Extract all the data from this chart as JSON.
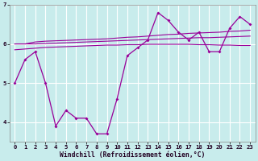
{
  "xlabel": "Windchill (Refroidissement éolien,°C)",
  "background_color": "#c8ecec",
  "grid_color": "#ffffff",
  "line_color": "#990099",
  "x": [
    0,
    1,
    2,
    3,
    4,
    5,
    6,
    7,
    8,
    9,
    10,
    11,
    12,
    13,
    14,
    15,
    16,
    17,
    18,
    19,
    20,
    21,
    22,
    23
  ],
  "line1": [
    5.0,
    5.6,
    5.8,
    5.0,
    3.9,
    4.3,
    4.1,
    4.1,
    3.7,
    3.7,
    4.6,
    5.7,
    5.9,
    6.1,
    6.8,
    6.6,
    6.3,
    6.1,
    6.3,
    5.8,
    5.8,
    6.4,
    6.7,
    6.5
  ],
  "line2": [
    6.0,
    6.0,
    6.05,
    6.07,
    6.08,
    6.09,
    6.1,
    6.11,
    6.12,
    6.13,
    6.15,
    6.17,
    6.18,
    6.2,
    6.22,
    6.24,
    6.25,
    6.27,
    6.28,
    6.29,
    6.3,
    6.32,
    6.33,
    6.35
  ],
  "line3": [
    6.0,
    6.0,
    6.0,
    6.01,
    6.02,
    6.03,
    6.04,
    6.05,
    6.06,
    6.07,
    6.08,
    6.09,
    6.1,
    6.11,
    6.12,
    6.13,
    6.14,
    6.15,
    6.16,
    6.16,
    6.17,
    6.18,
    6.19,
    6.2
  ],
  "line4": [
    5.85,
    5.87,
    5.89,
    5.91,
    5.92,
    5.93,
    5.94,
    5.95,
    5.96,
    5.97,
    5.97,
    5.98,
    5.98,
    5.99,
    5.99,
    5.99,
    5.99,
    5.99,
    5.98,
    5.98,
    5.97,
    5.97,
    5.96,
    5.96
  ],
  "ylim": [
    3.5,
    7.0
  ],
  "ytick_positions": [
    4,
    5,
    6,
    7
  ],
  "ytick_labels": [
    "4",
    "5",
    "6",
    "7"
  ],
  "xlim": [
    -0.5,
    23.5
  ],
  "figwidth": 3.2,
  "figheight": 2.0,
  "dpi": 100
}
